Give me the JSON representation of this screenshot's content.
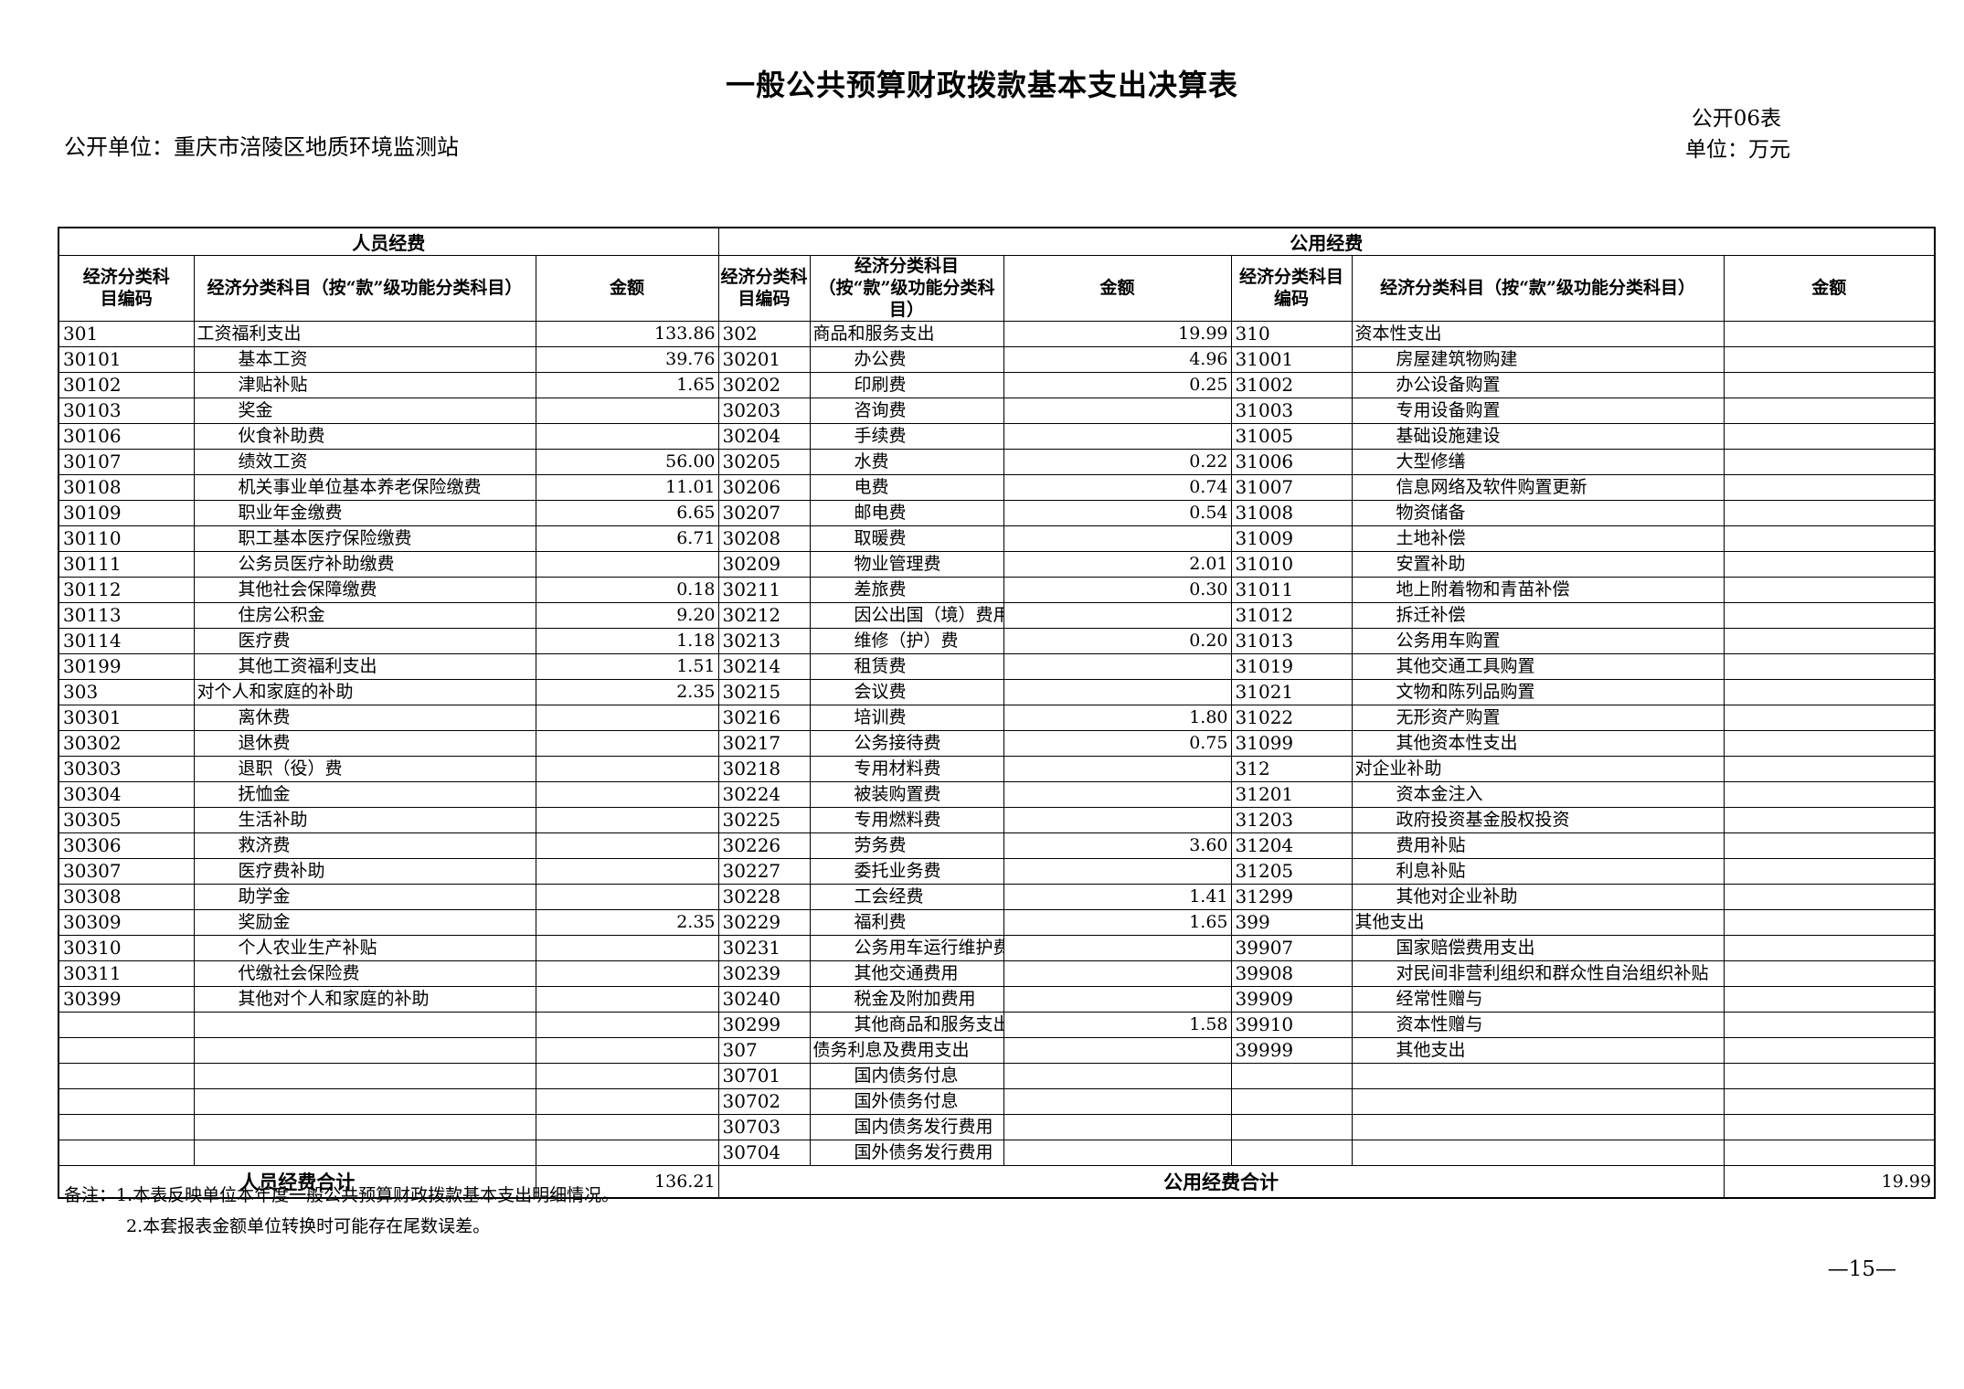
{
  "page": {
    "title": "一般公共预算财政拨款基本支出决算表",
    "table_code": "公开06表",
    "open_unit": "公开单位：重庆市涪陵区地质环境监测站",
    "unit_of_measure": "单位：万元",
    "notes": [
      "备注：1.本表反映单位本年度一般公共预算财政拨款基本支出明细情况。",
      "2.本套报表金额单位转换时可能存在尾数误差。"
    ],
    "page_number": "—15—"
  },
  "table": {
    "groups": [
      "人员经费",
      "公用经费"
    ],
    "headers": [
      "经济分类科目编码",
      "经济分类科目（按“款”级功能分类科目）",
      "金额",
      "经济分类科目编码",
      "经济分类科目（按“款”级功能分类科目）",
      "金额",
      "经济分类科目编码",
      "经济分类科目（按“款”级功能分类科目）",
      "金额"
    ],
    "rows": [
      [
        "301",
        "工资福利支出",
        "133.86",
        "302",
        "商品和服务支出",
        "19.99",
        "310",
        "资本性支出",
        ""
      ],
      [
        "30101",
        "基本工资",
        "39.76",
        "30201",
        "办公费",
        "4.96",
        "31001",
        "房屋建筑物购建",
        ""
      ],
      [
        "30102",
        "津贴补贴",
        "1.65",
        "30202",
        "印刷费",
        "0.25",
        "31002",
        "办公设备购置",
        ""
      ],
      [
        "30103",
        "奖金",
        "",
        "30203",
        "咨询费",
        "",
        "31003",
        "专用设备购置",
        ""
      ],
      [
        "30106",
        "伙食补助费",
        "",
        "30204",
        "手续费",
        "",
        "31005",
        "基础设施建设",
        ""
      ],
      [
        "30107",
        "绩效工资",
        "56.00",
        "30205",
        "水费",
        "0.22",
        "31006",
        "大型修缮",
        ""
      ],
      [
        "30108",
        "机关事业单位基本养老保险缴费",
        "11.01",
        "30206",
        "电费",
        "0.74",
        "31007",
        "信息网络及软件购置更新",
        ""
      ],
      [
        "30109",
        "职业年金缴费",
        "6.65",
        "30207",
        "邮电费",
        "0.54",
        "31008",
        "物资储备",
        ""
      ],
      [
        "30110",
        "职工基本医疗保险缴费",
        "6.71",
        "30208",
        "取暖费",
        "",
        "31009",
        "土地补偿",
        ""
      ],
      [
        "30111",
        "公务员医疗补助缴费",
        "",
        "30209",
        "物业管理费",
        "2.01",
        "31010",
        "安置补助",
        ""
      ],
      [
        "30112",
        "其他社会保障缴费",
        "0.18",
        "30211",
        "差旅费",
        "0.30",
        "31011",
        "地上附着物和青苗补偿",
        ""
      ],
      [
        "30113",
        "住房公积金",
        "9.20",
        "30212",
        "因公出国（境）费用",
        "",
        "31012",
        "拆迁补偿",
        ""
      ],
      [
        "30114",
        "医疗费",
        "1.18",
        "30213",
        "维修（护）费",
        "0.20",
        "31013",
        "公务用车购置",
        ""
      ],
      [
        "30199",
        "其他工资福利支出",
        "1.51",
        "30214",
        "租赁费",
        "",
        "31019",
        "其他交通工具购置",
        ""
      ],
      [
        "303",
        "对个人和家庭的补助",
        "2.35",
        "30215",
        "会议费",
        "",
        "31021",
        "文物和陈列品购置",
        ""
      ],
      [
        "30301",
        "离休费",
        "",
        "30216",
        "培训费",
        "1.80",
        "31022",
        "无形资产购置",
        ""
      ],
      [
        "30302",
        "退休费",
        "",
        "30217",
        "公务接待费",
        "0.75",
        "31099",
        "其他资本性支出",
        ""
      ],
      [
        "30303",
        "退职（役）费",
        "",
        "30218",
        "专用材料费",
        "",
        "312",
        "对企业补助",
        ""
      ],
      [
        "30304",
        "抚恤金",
        "",
        "30224",
        "被装购置费",
        "",
        "31201",
        "资本金注入",
        ""
      ],
      [
        "30305",
        "生活补助",
        "",
        "30225",
        "专用燃料费",
        "",
        "31203",
        "政府投资基金股权投资",
        ""
      ],
      [
        "30306",
        "救济费",
        "",
        "30226",
        "劳务费",
        "3.60",
        "31204",
        "费用补贴",
        ""
      ],
      [
        "30307",
        "医疗费补助",
        "",
        "30227",
        "委托业务费",
        "",
        "31205",
        "利息补贴",
        ""
      ],
      [
        "30308",
        "助学金",
        "",
        "30228",
        "工会经费",
        "1.41",
        "31299",
        "其他对企业补助",
        ""
      ],
      [
        "30309",
        "奖励金",
        "2.35",
        "30229",
        "福利费",
        "1.65",
        "399",
        "其他支出",
        ""
      ],
      [
        "30310",
        "个人农业生产补贴",
        "",
        "30231",
        "公务用车运行维护费",
        "",
        "39907",
        "国家赔偿费用支出",
        ""
      ],
      [
        "30311",
        "代缴社会保险费",
        "",
        "30239",
        "其他交通费用",
        "",
        "39908",
        "对民间非营利组织和群众性自治组织补贴",
        ""
      ],
      [
        "30399",
        "其他对个人和家庭的补助",
        "",
        "30240",
        "税金及附加费用",
        "",
        "39909",
        "经常性赠与",
        ""
      ],
      [
        "",
        "",
        "",
        "30299",
        "其他商品和服务支出",
        "1.58",
        "39910",
        "资本性赠与",
        ""
      ],
      [
        "",
        "",
        "",
        "307",
        "债务利息及费用支出",
        "",
        "39999",
        "其他支出",
        ""
      ],
      [
        "",
        "",
        "",
        "30701",
        "国内债务付息",
        "",
        "",
        "",
        ""
      ],
      [
        "",
        "",
        "",
        "30702",
        "国外债务付息",
        "",
        "",
        "",
        ""
      ],
      [
        "",
        "",
        "",
        "30703",
        "国内债务发行费用",
        "",
        "",
        "",
        ""
      ],
      [
        "",
        "",
        "",
        "30704",
        "国外债务发行费用",
        "",
        "",
        "",
        ""
      ]
    ],
    "totals": {
      "left_label": "人员经费合计",
      "left_value": "136.21",
      "right_label": "公用经费合计",
      "right_value": "19.99"
    }
  }
}
